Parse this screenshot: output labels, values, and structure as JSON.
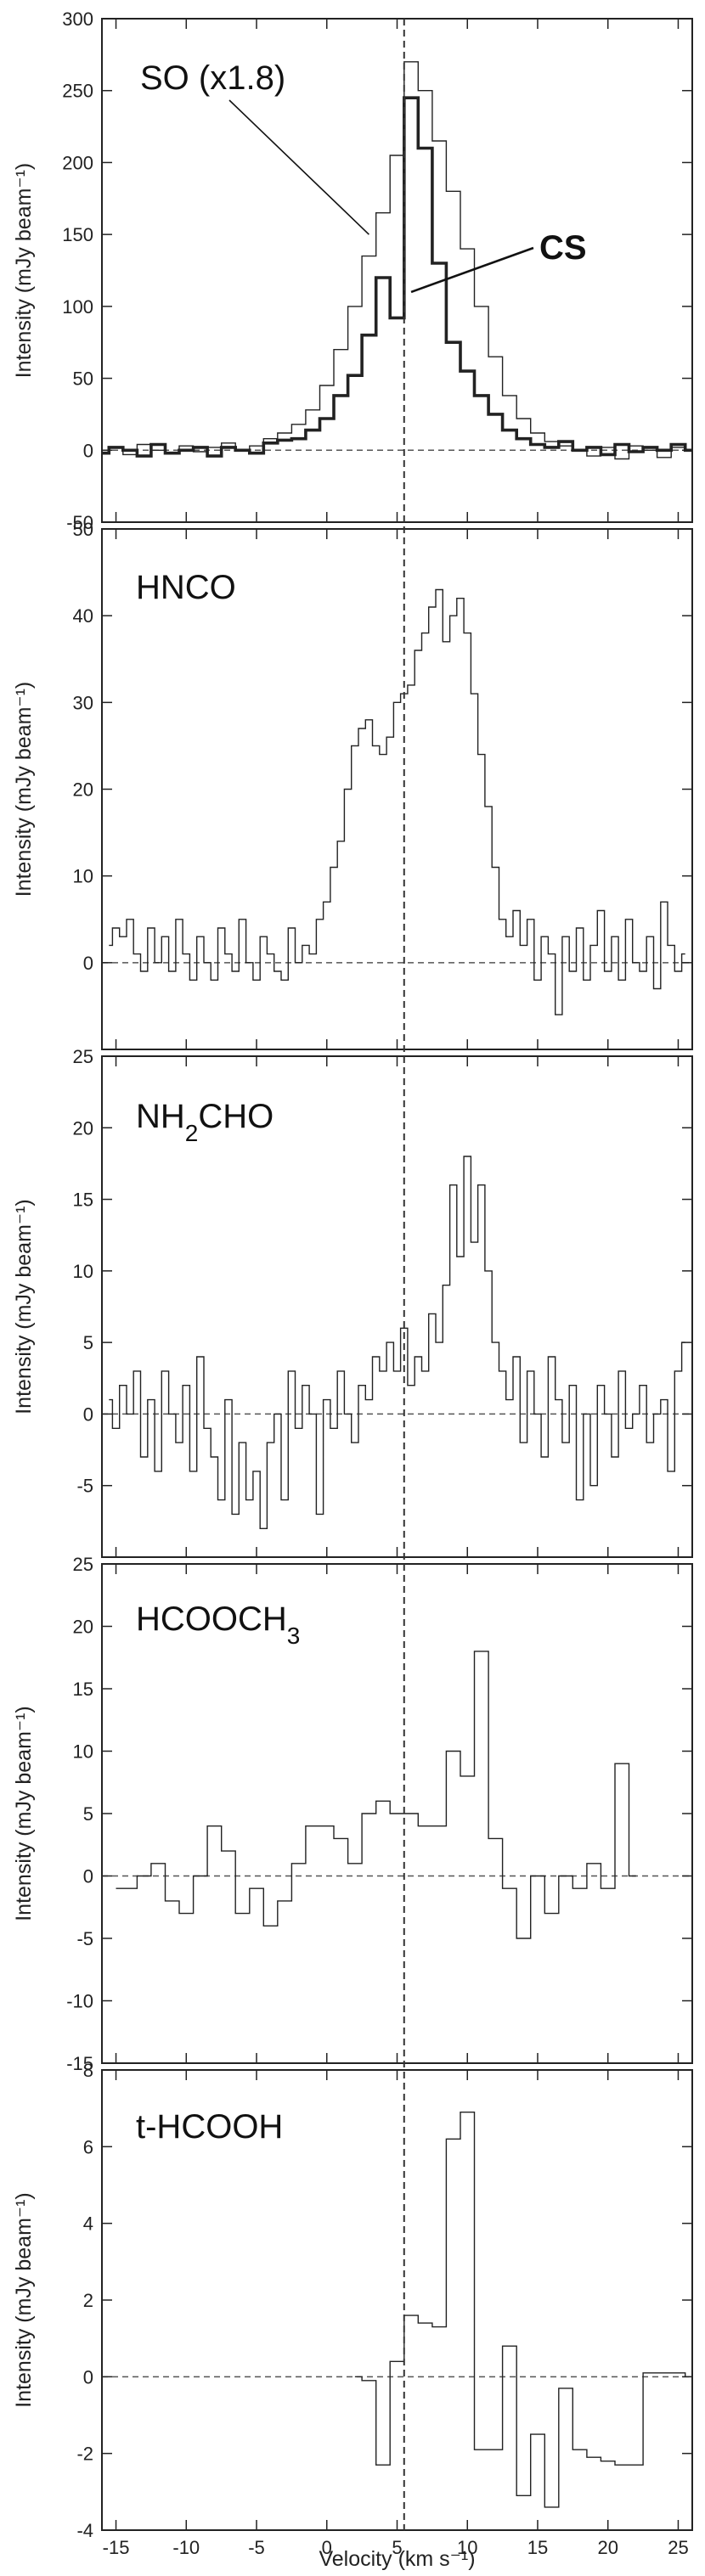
{
  "figure": {
    "xlabel": "Velocity (km s⁻¹)",
    "ylabel": "Intensity (mJy beam⁻¹)",
    "systemic_velocity": 5.5,
    "line_color": "#222222",
    "zero_line_color": "#555555"
  },
  "chart_data": [
    {
      "type": "line",
      "step": true,
      "xlim": [
        -16,
        26
      ],
      "ylim": [
        -50,
        300
      ],
      "xticks": [
        -15,
        -10,
        -5,
        0,
        5,
        10,
        15,
        20,
        25
      ],
      "yticks": [
        -50,
        0,
        50,
        100,
        150,
        200,
        250,
        300
      ],
      "ylabel": "Intensity (mJy beam⁻¹)",
      "annotations": [
        {
          "text": "SO (x1.8)",
          "points_to": "SO (x1.8)",
          "at": [
            3.0,
            150
          ]
        },
        {
          "text": "CS",
          "points_to": "CS",
          "at": [
            6.0,
            110
          ]
        }
      ],
      "series": [
        {
          "name": "SO (x1.8)",
          "weight": "thin",
          "x": [
            -16,
            -15,
            -14,
            -13,
            -12,
            -11,
            -10,
            -9,
            -8,
            -7,
            -6,
            -5,
            -4,
            -3,
            -2,
            -1,
            0,
            1,
            2,
            3,
            4,
            5,
            6,
            7,
            8,
            9,
            10,
            11,
            12,
            13,
            14,
            15,
            16,
            17,
            18,
            19,
            20,
            21,
            22,
            23,
            24,
            25,
            26
          ],
          "values": [
            0,
            2,
            -3,
            4,
            0,
            -2,
            3,
            -1,
            2,
            5,
            0,
            3,
            8,
            12,
            18,
            28,
            45,
            70,
            100,
            135,
            165,
            205,
            270,
            250,
            215,
            180,
            140,
            100,
            65,
            38,
            22,
            12,
            6,
            3,
            0,
            -4,
            2,
            -6,
            3,
            0,
            -5,
            2,
            0
          ]
        },
        {
          "name": "CS",
          "weight": "bold",
          "x": [
            -16,
            -15,
            -14,
            -13,
            -12,
            -11,
            -10,
            -9,
            -8,
            -7,
            -6,
            -5,
            -4,
            -3,
            -2,
            -1,
            0,
            1,
            2,
            3,
            4,
            5,
            6,
            7,
            8,
            9,
            10,
            11,
            12,
            13,
            14,
            15,
            16,
            17,
            18,
            19,
            20,
            21,
            22,
            23,
            24,
            25,
            26
          ],
          "values": [
            -2,
            2,
            0,
            -4,
            4,
            -2,
            0,
            2,
            -4,
            2,
            0,
            -2,
            5,
            7,
            8,
            14,
            22,
            38,
            52,
            80,
            120,
            92,
            245,
            210,
            130,
            75,
            55,
            38,
            25,
            14,
            8,
            4,
            2,
            6,
            0,
            2,
            -3,
            4,
            -1,
            2,
            0,
            4,
            0
          ]
        }
      ]
    },
    {
      "type": "line",
      "step": true,
      "xlim": [
        -16,
        26
      ],
      "ylim": [
        -10,
        50
      ],
      "xticks": [
        -15,
        -10,
        -5,
        0,
        5,
        10,
        15,
        20,
        25
      ],
      "yticks": [
        0,
        10,
        20,
        30,
        40,
        50
      ],
      "ylabel": "Intensity (mJy beam⁻¹)",
      "annotations": [],
      "series": [
        {
          "name": "HNCO",
          "weight": "thin",
          "x": [
            -15.5,
            -15,
            -14.5,
            -14,
            -13.5,
            -13,
            -12.5,
            -12,
            -11.5,
            -11,
            -10.5,
            -10,
            -9.5,
            -9,
            -8.5,
            -8,
            -7.5,
            -7,
            -6.5,
            -6,
            -5.5,
            -5,
            -4.5,
            -4,
            -3.5,
            -3,
            -2.5,
            -2,
            -1.5,
            -1,
            -0.5,
            0,
            0.5,
            1,
            1.5,
            2,
            2.5,
            3,
            3.5,
            4,
            4.5,
            5,
            5.5,
            6,
            6.5,
            7,
            7.5,
            8,
            8.5,
            9,
            9.5,
            10,
            10.5,
            11,
            11.5,
            12,
            12.5,
            13,
            13.5,
            14,
            14.5,
            15,
            15.5,
            16,
            16.5,
            17,
            17.5,
            18,
            18.5,
            19,
            19.5,
            20,
            20.5,
            21,
            21.5,
            22,
            22.5,
            23,
            23.5,
            24,
            24.5,
            25,
            25.5
          ],
          "values": [
            2,
            4,
            3,
            5,
            1,
            -1,
            4,
            0,
            3,
            -1,
            5,
            1,
            -2,
            3,
            0,
            -2,
            4,
            1,
            -1,
            5,
            0,
            -2,
            3,
            1,
            -1,
            -2,
            4,
            0,
            2,
            1,
            5,
            7,
            11,
            14,
            20,
            25,
            27,
            28,
            25,
            24,
            26,
            30,
            31,
            32,
            36,
            38,
            41,
            43,
            37,
            40,
            42,
            38,
            31,
            24,
            18,
            11,
            5,
            3,
            6,
            2,
            5,
            -2,
            3,
            1,
            -6,
            3,
            -1,
            4,
            -2,
            2,
            6,
            -1,
            3,
            -2,
            5,
            0,
            -1,
            3,
            -3,
            7,
            2,
            -1,
            1
          ]
        }
      ]
    },
    {
      "type": "line",
      "step": true,
      "xlim": [
        -16,
        26
      ],
      "ylim": [
        -10,
        25
      ],
      "xticks": [
        -15,
        -10,
        -5,
        0,
        5,
        10,
        15,
        20,
        25
      ],
      "yticks": [
        -5,
        0,
        5,
        10,
        15,
        20,
        25
      ],
      "ylabel": "Intensity (mJy beam⁻¹)",
      "annotations": [],
      "series": [
        {
          "name": "NH₂CHO",
          "weight": "thin",
          "x": [
            -15.5,
            -15,
            -14.5,
            -14,
            -13.5,
            -13,
            -12.5,
            -12,
            -11.5,
            -11,
            -10.5,
            -10,
            -9.5,
            -9,
            -8.5,
            -8,
            -7.5,
            -7,
            -6.5,
            -6,
            -5.5,
            -5,
            -4.5,
            -4,
            -3.5,
            -3,
            -2.5,
            -2,
            -1.5,
            -1,
            -0.5,
            0,
            0.5,
            1,
            1.5,
            2,
            2.5,
            3,
            3.5,
            4,
            4.5,
            5,
            5.5,
            6,
            6.5,
            7,
            7.5,
            8,
            8.5,
            9,
            9.5,
            10,
            10.5,
            11,
            11.5,
            12,
            12.5,
            13,
            13.5,
            14,
            14.5,
            15,
            15.5,
            16,
            16.5,
            17,
            17.5,
            18,
            18.5,
            19,
            19.5,
            20,
            20.5,
            21,
            21.5,
            22,
            22.5,
            23,
            23.5,
            24,
            24.5,
            25,
            25.5
          ],
          "values": [
            1,
            -1,
            2,
            0,
            3,
            -3,
            1,
            -4,
            3,
            0,
            -2,
            2,
            -4,
            4,
            -1,
            -3,
            -6,
            1,
            -7,
            -2,
            -6,
            -4,
            -8,
            -2,
            0,
            -6,
            3,
            -1,
            2,
            0,
            -7,
            1,
            -1,
            3,
            0,
            -2,
            2,
            1,
            4,
            3,
            5,
            3,
            6,
            2,
            4,
            3,
            7,
            5,
            9,
            16,
            11,
            18,
            12,
            16,
            10,
            5,
            3,
            1,
            4,
            -2,
            3,
            0,
            -3,
            4,
            1,
            -2,
            2,
            -6,
            0,
            -5,
            2,
            0,
            -3,
            3,
            -1,
            0,
            2,
            -2,
            0,
            1,
            -4,
            3,
            5
          ]
        }
      ]
    },
    {
      "type": "line",
      "step": true,
      "xlim": [
        -16,
        26
      ],
      "ylim": [
        -15,
        25
      ],
      "xticks": [
        -15,
        -10,
        -5,
        0,
        5,
        10,
        15,
        20,
        25
      ],
      "yticks": [
        -15,
        -10,
        -5,
        0,
        5,
        10,
        15,
        20,
        25
      ],
      "ylabel": "Intensity (mJy beam⁻¹)",
      "annotations": [],
      "series": [
        {
          "name": "HCOOCH₃",
          "weight": "thin",
          "x": [
            -15,
            -14,
            -13,
            -12,
            -11,
            -10,
            -9,
            -8,
            -7,
            -6,
            -5,
            -4,
            -3,
            -2,
            -1,
            0,
            1,
            2,
            3,
            4,
            5,
            6,
            7,
            8,
            9,
            10,
            11,
            12,
            13,
            14,
            15,
            16,
            17,
            18,
            19,
            20,
            21,
            22
          ],
          "values": [
            -1,
            -1,
            0,
            1,
            -2,
            -3,
            0,
            4,
            2,
            -3,
            -1,
            -4,
            -2,
            1,
            4,
            4,
            3,
            1,
            5,
            6,
            5,
            5,
            4,
            4,
            10,
            8,
            18,
            3,
            -1,
            -5,
            0,
            -3,
            0,
            -1,
            1,
            -1,
            9,
            0
          ]
        }
      ]
    },
    {
      "type": "line",
      "step": true,
      "xlim": [
        -16,
        26
      ],
      "ylim": [
        -4,
        8
      ],
      "xticks": [
        -15,
        -10,
        -5,
        0,
        5,
        10,
        15,
        20,
        25
      ],
      "yticks": [
        -4,
        -2,
        0,
        2,
        4,
        6,
        8
      ],
      "ylabel": "Intensity (mJy beam⁻¹)",
      "annotations": [],
      "series": [
        {
          "name": "t-HCOOH",
          "weight": "thin",
          "x": [
            2,
            3,
            4,
            5,
            6,
            7,
            8,
            9,
            10,
            11,
            12,
            13,
            14,
            15,
            16,
            17,
            18,
            19,
            20,
            21,
            22,
            23,
            24,
            25,
            26
          ],
          "values": [
            0,
            -0.1,
            -2.3,
            0.4,
            1.6,
            1.4,
            1.3,
            6.2,
            6.9,
            -1.9,
            -1.9,
            0.8,
            -3.1,
            -1.5,
            -3.4,
            -0.3,
            -1.9,
            -2.1,
            -2.2,
            -2.3,
            -2.3,
            0.1,
            0.1,
            0.1,
            0
          ]
        }
      ]
    }
  ]
}
